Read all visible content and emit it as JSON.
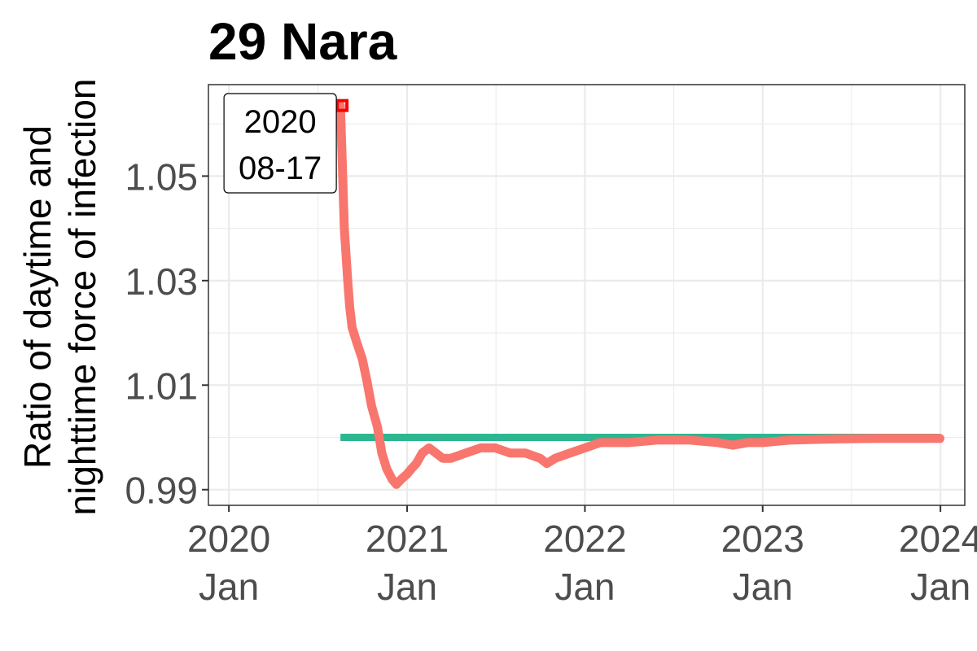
{
  "chart_data": {
    "type": "line",
    "title": "29 Nara",
    "ylabel_lines": [
      "Ratio of daytime and",
      "nighttime force of infection"
    ],
    "xlabel": "",
    "x_ticks": [
      {
        "date": "2020-01-01",
        "line1": "2020",
        "line2": "Jan"
      },
      {
        "date": "2021-01-01",
        "line1": "2021",
        "line2": "Jan"
      },
      {
        "date": "2022-01-01",
        "line1": "2022",
        "line2": "Jan"
      },
      {
        "date": "2023-01-01",
        "line1": "2023",
        "line2": "Jan"
      },
      {
        "date": "2024-01-01",
        "line1": "2024",
        "line2": "Jan"
      }
    ],
    "y_ticks": [
      0.99,
      1.01,
      1.03,
      1.05
    ],
    "y_tick_labels": [
      "0.99",
      "1.01",
      "1.03",
      "1.05"
    ],
    "xlim": [
      "2019-11-20",
      "2024-02-20"
    ],
    "ylim": [
      0.987,
      1.0675
    ],
    "grid": true,
    "legend": "none",
    "colors": {
      "series": "#f8766d",
      "reference": "#2db68f",
      "marker": "#ff0000",
      "grid": "#ebebeb",
      "panel_border": "#333333"
    },
    "reference_line": {
      "y": 1.0,
      "x_start": "2020-08-17",
      "x_end": "2023-12-31"
    },
    "series": [
      {
        "x": [
          "2020-08-17",
          "2020-08-20",
          "2020-08-25",
          "2020-09-01",
          "2020-09-05",
          "2020-09-10",
          "2020-09-20",
          "2020-10-01",
          "2020-10-10",
          "2020-10-20",
          "2020-11-01",
          "2020-11-10",
          "2020-11-20",
          "2020-12-01",
          "2020-12-10",
          "2020-12-20",
          "2021-01-01",
          "2021-01-10",
          "2021-01-20",
          "2021-02-01",
          "2021-02-15",
          "2021-03-01",
          "2021-03-15",
          "2021-04-01",
          "2021-05-01",
          "2021-06-01",
          "2021-07-01",
          "2021-08-01",
          "2021-09-01",
          "2021-10-01",
          "2021-10-15",
          "2021-11-01",
          "2021-12-01",
          "2022-01-01",
          "2022-02-01",
          "2022-03-01",
          "2022-04-01",
          "2022-06-01",
          "2022-08-01",
          "2022-10-01",
          "2022-11-01",
          "2022-12-01",
          "2023-01-01",
          "2023-03-01",
          "2023-06-01",
          "2023-09-01",
          "2023-12-31"
        ],
        "y": [
          1.0635,
          1.055,
          1.04,
          1.03,
          1.025,
          1.021,
          1.018,
          1.015,
          1.011,
          1.006,
          1.002,
          0.997,
          0.994,
          0.992,
          0.991,
          0.992,
          0.993,
          0.994,
          0.995,
          0.997,
          0.998,
          0.997,
          0.996,
          0.996,
          0.997,
          0.998,
          0.998,
          0.997,
          0.997,
          0.996,
          0.995,
          0.996,
          0.997,
          0.998,
          0.999,
          0.999,
          0.999,
          0.9995,
          0.9995,
          0.999,
          0.9985,
          0.999,
          0.999,
          0.9995,
          0.9997,
          0.9998,
          0.9998
        ]
      }
    ],
    "annotation": {
      "date": "2020-08-17",
      "y": 1.0635,
      "lines": [
        "2020",
        "08-17"
      ]
    }
  }
}
